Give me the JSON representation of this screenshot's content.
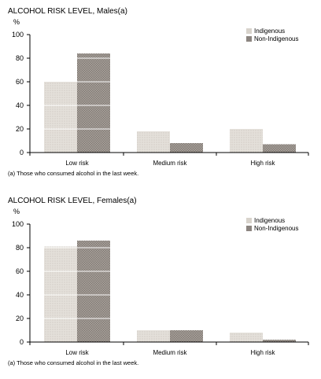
{
  "colors": {
    "indigenous": "#d8d3cc",
    "non_indigenous": "#8c8580",
    "axis": "#000000",
    "gridline": "#ffffff"
  },
  "chart_data": [
    {
      "type": "bar",
      "title": "ALCOHOL RISK LEVEL, Males(a)",
      "ylabel": "%",
      "ylim": [
        0,
        100
      ],
      "yticks": [
        "0",
        "20",
        "40",
        "60",
        "80",
        "100"
      ],
      "categories": [
        "Low risk",
        "Medium risk",
        "High risk"
      ],
      "series": [
        {
          "name": "Indigenous",
          "values": [
            60,
            18,
            20
          ]
        },
        {
          "name": "Non-Indigenous",
          "values": [
            84,
            8,
            7
          ]
        }
      ],
      "legend_position": "top-right",
      "note": "(a) Those who consumed alcohol in the last week."
    },
    {
      "type": "bar",
      "title": "ALCOHOL RISK LEVEL, Females(a)",
      "ylabel": "%",
      "ylim": [
        0,
        100
      ],
      "yticks": [
        "0",
        "20",
        "40",
        "60",
        "80",
        "100"
      ],
      "categories": [
        "Low risk",
        "Medium risk",
        "High risk"
      ],
      "series": [
        {
          "name": "Indigenous",
          "values": [
            81,
            10,
            8
          ]
        },
        {
          "name": "Non-Indigenous",
          "values": [
            86,
            10,
            2
          ]
        }
      ],
      "legend_position": "top-right",
      "note": "(a) Those who consumed alcohol in the last week."
    }
  ]
}
